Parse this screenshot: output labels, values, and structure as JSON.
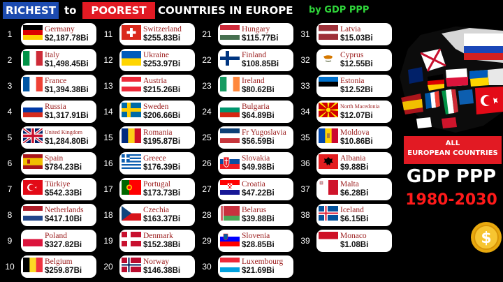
{
  "header": {
    "richest": "RICHEST",
    "to": "to",
    "poorest": "POOREST",
    "rest": "COUNTRIES IN EUROPE",
    "by_gdp": "by GDP PPP"
  },
  "columns": [
    [
      {
        "rank": "1",
        "name": "Germany",
        "value": "$2,187.78Bi",
        "flag": "de"
      },
      {
        "rank": "2",
        "name": "Italy",
        "value": "$1,498.45Bi",
        "flag": "it"
      },
      {
        "rank": "3",
        "name": "France",
        "value": "$1,394.38Bi",
        "flag": "fr"
      },
      {
        "rank": "4",
        "name": "Russia",
        "value": "$1,317.91Bi",
        "flag": "ru"
      },
      {
        "rank": "5",
        "name": "United Kingdom",
        "value": "$1,284.80Bi",
        "flag": "gb",
        "small": true
      },
      {
        "rank": "6",
        "name": "Spain",
        "value": "$784.23Bi",
        "flag": "es"
      },
      {
        "rank": "7",
        "name": "Türkiye",
        "value": "$542.33Bi",
        "flag": "tr"
      },
      {
        "rank": "8",
        "name": "Netherlands",
        "value": "$417.10Bi",
        "flag": "nl"
      },
      {
        "rank": "9",
        "name": "Poland",
        "value": "$327.82Bi",
        "flag": "pl"
      },
      {
        "rank": "10",
        "name": "Belgium",
        "value": "$259.87Bi",
        "flag": "be"
      }
    ],
    [
      {
        "rank": "11",
        "name": "Switzerland",
        "value": "$255.83Bi",
        "flag": "ch"
      },
      {
        "rank": "12",
        "name": "Ukraine",
        "value": "$253.97Bi",
        "flag": "ua"
      },
      {
        "rank": "13",
        "name": "Austria",
        "value": "$215.26Bi",
        "flag": "at"
      },
      {
        "rank": "14",
        "name": "Sweden",
        "value": "$206.66Bi",
        "flag": "se"
      },
      {
        "rank": "15",
        "name": "Romania",
        "value": "$195.87Bi",
        "flag": "ro"
      },
      {
        "rank": "16",
        "name": "Greece",
        "value": "$176.39Bi",
        "flag": "gr"
      },
      {
        "rank": "17",
        "name": "Portugal",
        "value": "$173.73Bi",
        "flag": "pt"
      },
      {
        "rank": "18",
        "name": "Czechia",
        "value": "$163.37Bi",
        "flag": "cz"
      },
      {
        "rank": "19",
        "name": "Denmark",
        "value": "$152.38Bi",
        "flag": "dk"
      },
      {
        "rank": "20",
        "name": "Norway",
        "value": "$146.38Bi",
        "flag": "no"
      }
    ],
    [
      {
        "rank": "21",
        "name": "Hungary",
        "value": "$115.77Bi",
        "flag": "hu"
      },
      {
        "rank": "22",
        "name": "Finland",
        "value": "$108.85Bi",
        "flag": "fi"
      },
      {
        "rank": "23",
        "name": "Ireland",
        "value": "$80.62Bi",
        "flag": "ie"
      },
      {
        "rank": "24",
        "name": "Bulgaria",
        "value": "$64.89Bi",
        "flag": "bg"
      },
      {
        "rank": "25",
        "name": "Fr Yugoslavia",
        "value": "$56.59Bi",
        "flag": "yu"
      },
      {
        "rank": "26",
        "name": "Slovakia",
        "value": "$49.98Bi",
        "flag": "sk"
      },
      {
        "rank": "27",
        "name": "Croatia",
        "value": "$47.22Bi",
        "flag": "hr"
      },
      {
        "rank": "28",
        "name": "Belarus",
        "value": "$39.88Bi",
        "flag": "by"
      },
      {
        "rank": "29",
        "name": "Slovenia",
        "value": "$28.85Bi",
        "flag": "si"
      },
      {
        "rank": "30",
        "name": "Luxembourg",
        "value": "$21.69Bi",
        "flag": "lu"
      }
    ],
    [
      {
        "rank": "31",
        "name": "Latvia",
        "value": "$15.03Bi",
        "flag": "lv"
      },
      {
        "rank": "32",
        "name": "Cyprus",
        "value": "$12.55Bi",
        "flag": "cy"
      },
      {
        "rank": "33",
        "name": "Estonia",
        "value": "$12.52Bi",
        "flag": "ee"
      },
      {
        "rank": "34",
        "name": "North Macedonia",
        "value": "$12.07Bi",
        "flag": "mk",
        "small": true
      },
      {
        "rank": "35",
        "name": "Moldova",
        "value": "$10.86Bi",
        "flag": "md"
      },
      {
        "rank": "36",
        "name": "Albania",
        "value": "$9.88Bi",
        "flag": "al"
      },
      {
        "rank": "37",
        "name": "Malta",
        "value": "$6.28Bi",
        "flag": "mt"
      },
      {
        "rank": "38",
        "name": "Iceland",
        "value": "$6.15Bi",
        "flag": "is"
      },
      {
        "rank": "39",
        "name": "Monaco",
        "value": "$1.08Bi",
        "flag": "mc"
      }
    ]
  ],
  "panel": {
    "tag_line1": "ALL",
    "tag_line2": "EUROPEAN COUNTRIES",
    "gdp": "GDP PPP",
    "years": "1980-2030"
  },
  "colors": {
    "richest_bg": "#1c4bb0",
    "poorest_bg": "#e21a23",
    "gdp_label": "#2fd63a",
    "country_name": "#9b1c1c",
    "years": "#ff1a1a"
  }
}
